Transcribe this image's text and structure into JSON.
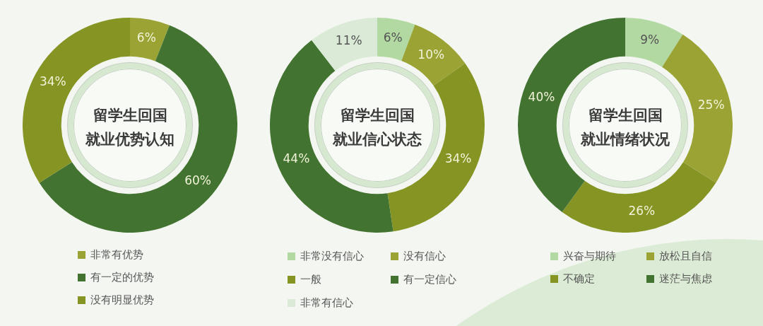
{
  "chart_data": [
    {
      "type": "donut",
      "title": "留学生回国就业优势认知",
      "categories": [
        "非常有优势",
        "有一定的优势",
        "没有明显优势"
      ],
      "values": [
        6,
        60,
        34
      ],
      "colors": [
        "#9aa334",
        "#437330",
        "#869423"
      ],
      "value_labels": [
        "6%",
        "60%",
        "34%"
      ],
      "legend": "bottom"
    },
    {
      "type": "donut",
      "title": "留学生回国就业信心状态",
      "categories": [
        "非常没有信心",
        "没有信心",
        "一般",
        "有一定信心",
        "非常有信心"
      ],
      "values": [
        6,
        10,
        34,
        44,
        11
      ],
      "colors": [
        "#b3d9a3",
        "#9aa334",
        "#869423",
        "#437330",
        "#daead6"
      ],
      "value_labels": [
        "6%",
        "10%",
        "34%",
        "44%",
        "11%"
      ],
      "legend": "bottom"
    },
    {
      "type": "donut",
      "title": "留学生回国就业情绪状况",
      "categories": [
        "兴奋与期待",
        "放松且自信",
        "不确定",
        "迷茫与焦虑"
      ],
      "values": [
        9,
        25,
        26,
        40
      ],
      "colors": [
        "#b3d9a3",
        "#9aa334",
        "#869423",
        "#437330"
      ],
      "value_labels": [
        "9%",
        "25%",
        "26%",
        "40%"
      ],
      "legend": "bottom"
    }
  ]
}
